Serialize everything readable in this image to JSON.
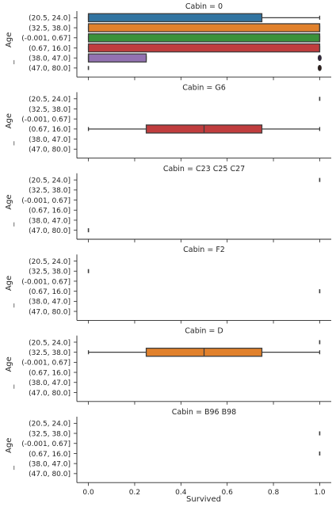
{
  "chart_data": {
    "type": "box",
    "xlabel": "Survived",
    "ylabel": "Age",
    "ylabel_suffix": "_",
    "xlim": [
      -0.05,
      1.05
    ],
    "xticks": [
      0.0,
      0.2,
      0.4,
      0.6,
      0.8,
      1.0
    ],
    "xtick_labels": [
      "0.0",
      "0.2",
      "0.4",
      "0.6",
      "0.8",
      "1.0"
    ],
    "categories": [
      "(20.5, 24.0]",
      "(32.5, 38.0]",
      "(-0.001, 0.67]",
      "(0.67, 16.0]",
      "(38.0, 47.0]",
      "(47.0, 80.0]"
    ],
    "colors": [
      "#3274a1",
      "#e1812c",
      "#3a923a",
      "#c03d3e",
      "#9372b2",
      "#845b53"
    ],
    "panels": [
      {
        "title": "Cabin = 0",
        "boxes": [
          {
            "category": 0,
            "whislo": 0,
            "q1": 0,
            "med": 0,
            "q3": 0.75,
            "whishi": 1
          },
          {
            "category": 1,
            "whislo": 0,
            "q1": 0,
            "med": 1,
            "q3": 1,
            "whishi": 1
          },
          {
            "category": 2,
            "whislo": 0,
            "q1": 0,
            "med": 1,
            "q3": 1,
            "whishi": 1
          },
          {
            "category": 3,
            "whislo": 0,
            "q1": 0,
            "med": 1,
            "q3": 1,
            "whishi": 1
          },
          {
            "category": 4,
            "whislo": 0,
            "q1": 0,
            "med": 0,
            "q3": 0.25,
            "whishi": 0.25,
            "fliers": [
              1
            ]
          },
          {
            "category": 5,
            "whislo": 0,
            "q1": 0,
            "med": 0,
            "q3": 0,
            "whishi": 0,
            "fliers": [
              1
            ]
          }
        ]
      },
      {
        "title": "Cabin = G6",
        "boxes": [
          {
            "category": 0,
            "whislo": 1,
            "q1": 1,
            "med": 1,
            "q3": 1,
            "whishi": 1
          },
          {
            "category": 3,
            "whislo": 0,
            "q1": 0.25,
            "med": 0.5,
            "q3": 0.75,
            "whishi": 1
          }
        ]
      },
      {
        "title": "Cabin = C23 C25 C27",
        "boxes": [
          {
            "category": 0,
            "whislo": 1,
            "q1": 1,
            "med": 1,
            "q3": 1,
            "whishi": 1
          },
          {
            "category": 5,
            "whislo": 0,
            "q1": 0,
            "med": 0,
            "q3": 0,
            "whishi": 0
          }
        ]
      },
      {
        "title": "Cabin = F2",
        "boxes": [
          {
            "category": 1,
            "whislo": 0,
            "q1": 0,
            "med": 0,
            "q3": 0,
            "whishi": 0
          },
          {
            "category": 3,
            "whislo": 1,
            "q1": 1,
            "med": 1,
            "q3": 1,
            "whishi": 1
          }
        ]
      },
      {
        "title": "Cabin = D",
        "boxes": [
          {
            "category": 0,
            "whislo": 1,
            "q1": 1,
            "med": 1,
            "q3": 1,
            "whishi": 1
          },
          {
            "category": 1,
            "whislo": 0,
            "q1": 0.25,
            "med": 0.5,
            "q3": 0.75,
            "whishi": 1
          }
        ]
      },
      {
        "title": "Cabin = B96 B98",
        "boxes": [
          {
            "category": 1,
            "whislo": 1,
            "q1": 1,
            "med": 1,
            "q3": 1,
            "whishi": 1
          },
          {
            "category": 3,
            "whislo": 1,
            "q1": 1,
            "med": 1,
            "q3": 1,
            "whishi": 1
          }
        ]
      }
    ]
  }
}
